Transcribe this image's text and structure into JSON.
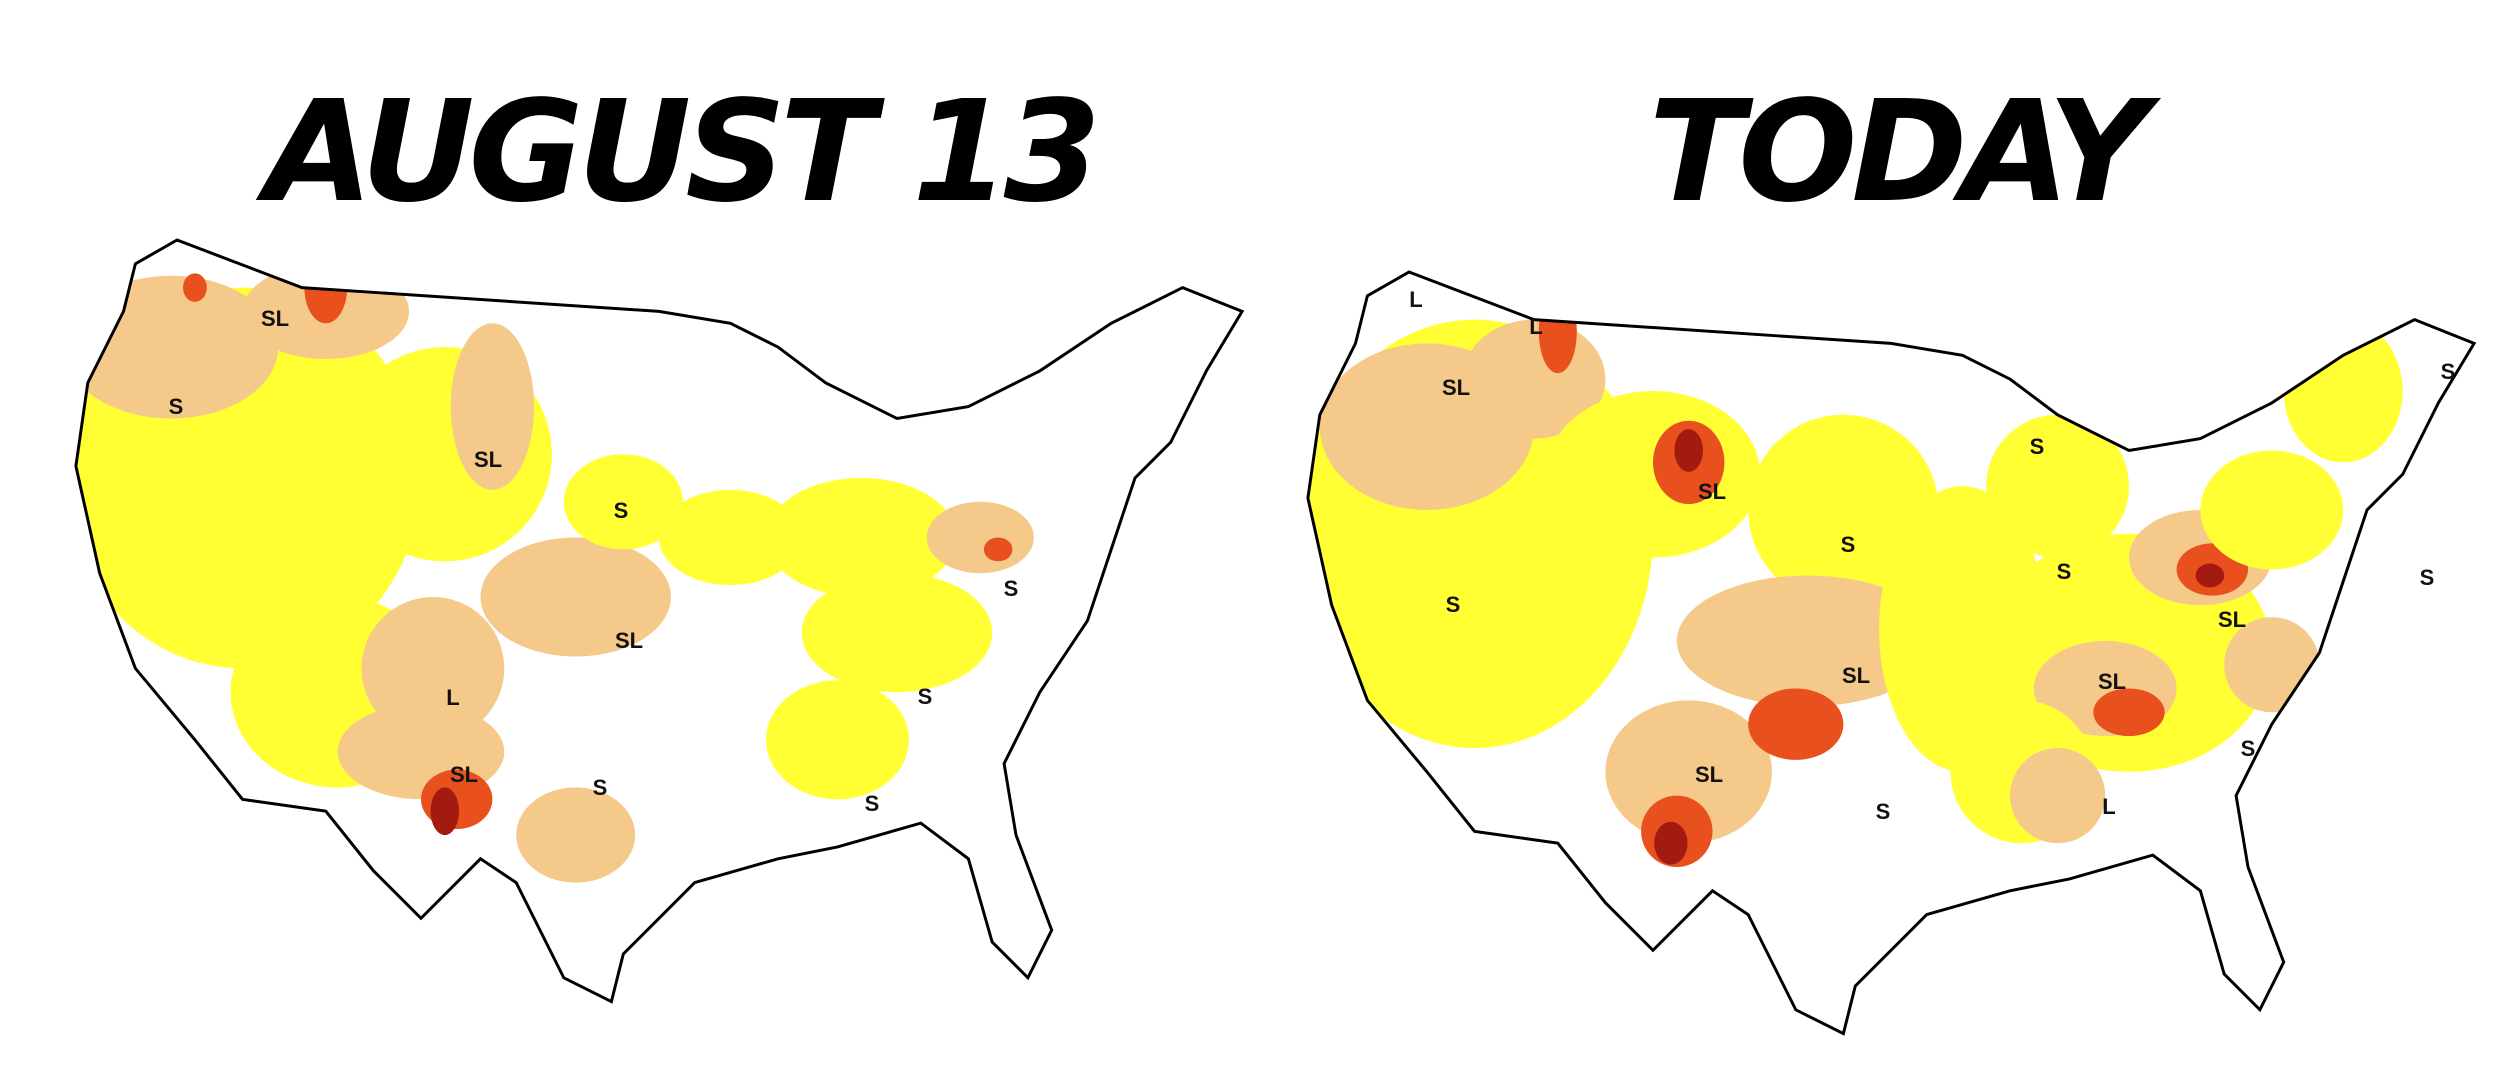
{
  "maps": [
    {
      "title": "AUGUST 13",
      "labels": [
        "S",
        "SL",
        "SL",
        "S",
        "SL",
        "L",
        "SL",
        "S",
        "S",
        "S",
        "S"
      ]
    },
    {
      "title": "TODAY",
      "labels": [
        "L",
        "L",
        "SL",
        "SL",
        "S",
        "S",
        "S",
        "S",
        "S",
        "SL",
        "S",
        "SL",
        "SL",
        "SL",
        "S",
        "L",
        "S"
      ]
    }
  ]
}
